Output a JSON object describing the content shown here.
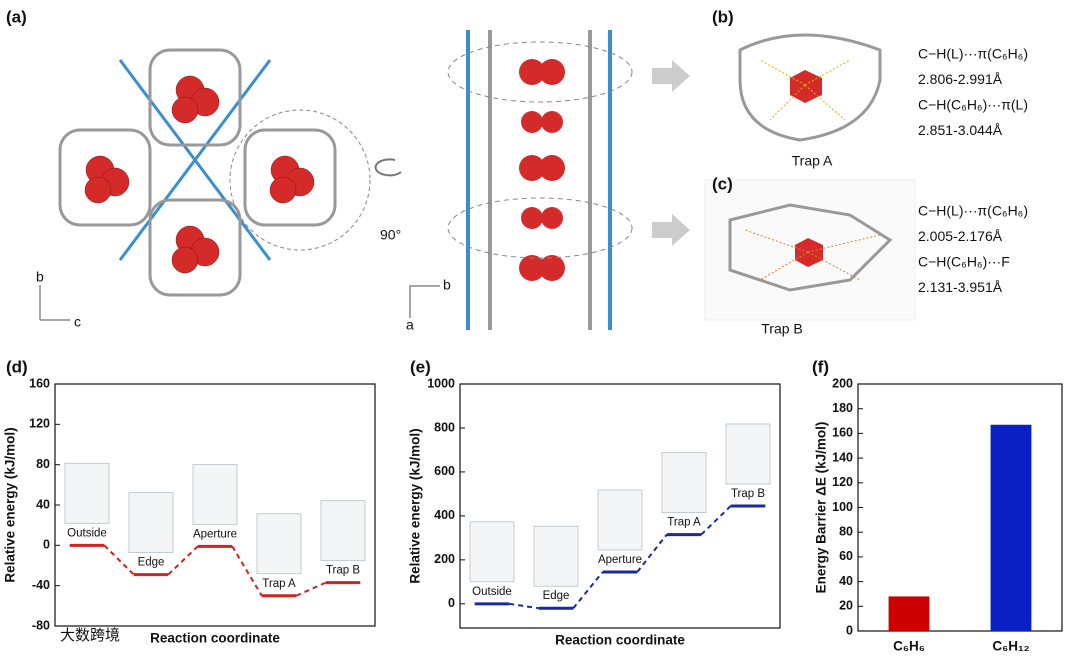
{
  "figure": {
    "panels": {
      "a": {
        "label": "(a)",
        "rotation": "90°",
        "axes_left": [
          "b",
          "c"
        ],
        "axes_right": [
          "b",
          "a"
        ]
      },
      "b": {
        "label": "(b)",
        "caption": "Trap A",
        "lines": [
          "C−H(L)···π(C₆H₆)",
          "2.806-2.991Å",
          "C−H(C₆H₆)···π(L)",
          "2.851-3.044Å"
        ],
        "highlight_color": "#e2b000"
      },
      "c": {
        "label": "(c)",
        "caption": "Trap B",
        "lines": [
          "C−H(L)···π(C₆H₆)",
          "2.005-2.176Å",
          "C−H(C₆H₆)···F",
          "2.131-3.951Å"
        ],
        "highlight_color": "#d9822b"
      }
    },
    "watermark": "大数跨境"
  },
  "chart_data": [
    {
      "type": "energy",
      "label": "(d)",
      "x_label": "Reaction coordinate",
      "y_label": "Relative energy (kJ/mol)",
      "categories": [
        "Outside",
        "Edge",
        "Aperture",
        "Trap A",
        "Trap B"
      ],
      "values": [
        0,
        -29,
        -1,
        -50,
        -37
      ],
      "color": "#d42020",
      "ylim": [
        -80,
        160
      ],
      "yticks": [
        -80,
        -40,
        0,
        40,
        80,
        120,
        160
      ]
    },
    {
      "type": "energy",
      "label": "(e)",
      "x_label": "Reaction coordinate",
      "y_label": "Relative energy (kJ/mol)",
      "categories": [
        "Outside",
        "Edge",
        "Aperture",
        "Trap A",
        "Trap B"
      ],
      "values": [
        0,
        -20,
        145,
        315,
        445
      ],
      "color": "#1a2a9c",
      "ylim": [
        -110,
        1000
      ],
      "yticks": [
        0,
        200,
        400,
        600,
        800,
        1000
      ]
    },
    {
      "type": "bar",
      "label": "(f)",
      "y_label": "Energy Barrier ΔE (kJ/mol)",
      "categories": [
        "C₆H₆",
        "C₆H₁₂"
      ],
      "values": [
        28,
        167
      ],
      "colors": [
        "#cc0000",
        "#0a1fc4"
      ],
      "ylim": [
        0,
        200
      ],
      "yticks": [
        0,
        20,
        40,
        60,
        80,
        100,
        120,
        140,
        160,
        180,
        200
      ]
    }
  ]
}
